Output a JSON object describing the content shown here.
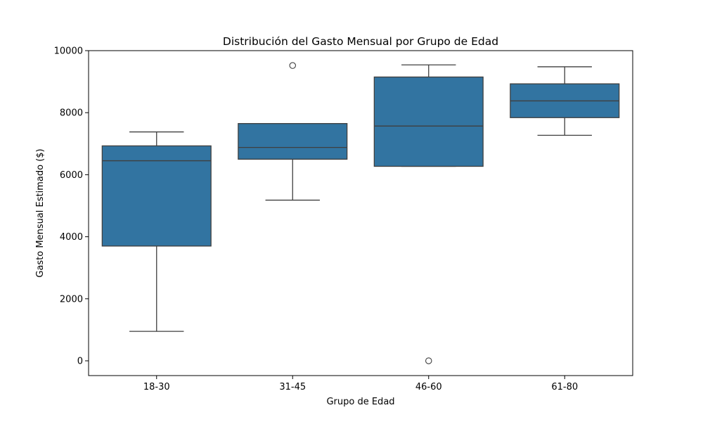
{
  "chart_data": {
    "type": "box",
    "title": "Distribución del Gasto Mensual por Grupo de Edad",
    "xlabel": "Grupo de Edad",
    "ylabel": "Gasto Mensual Estimado ($)",
    "ylim": [
      -500,
      10000
    ],
    "yticks": [
      0,
      2000,
      4000,
      6000,
      8000,
      10000
    ],
    "ytick_labels": [
      "0",
      "2000",
      "4000",
      "6000",
      "8000",
      "10000"
    ],
    "grid": false,
    "legend": "none",
    "box_color": "#3274a1",
    "line_color": "#3f3f3f",
    "categories": [
      "18-30",
      "31-45",
      "46-60",
      "61-80"
    ],
    "boxes": [
      {
        "category": "18-30",
        "whisker_low": 950,
        "q1": 3700,
        "median": 6450,
        "q3": 6930,
        "whisker_high": 7380,
        "outliers": []
      },
      {
        "category": "31-45",
        "whisker_low": 5180,
        "q1": 6500,
        "median": 6880,
        "q3": 7650,
        "whisker_high": 7650,
        "outliers": [
          9520
        ]
      },
      {
        "category": "46-60",
        "whisker_low": 6270,
        "q1": 6270,
        "median": 7570,
        "q3": 9150,
        "whisker_high": 9540,
        "outliers": [
          0
        ]
      },
      {
        "category": "61-80",
        "whisker_low": 7270,
        "q1": 7840,
        "median": 8380,
        "q3": 8930,
        "whisker_high": 9480,
        "outliers": []
      }
    ]
  }
}
